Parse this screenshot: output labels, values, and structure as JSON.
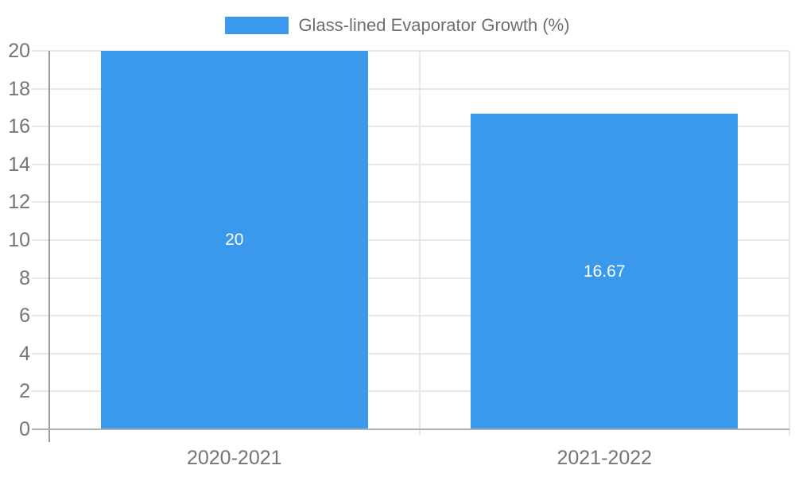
{
  "chart_data": {
    "type": "bar",
    "title": "",
    "legend": "Glass-lined Evaporator Growth (%)",
    "legend_position": "top",
    "categories": [
      "2020-2021",
      "2021-2022"
    ],
    "values": [
      20,
      16.67
    ],
    "data_labels": [
      "20",
      "16.67"
    ],
    "xlabel": "",
    "ylabel": "",
    "ylim": [
      0,
      20
    ],
    "yticks": [
      0,
      2,
      4,
      6,
      8,
      10,
      12,
      14,
      16,
      18,
      20
    ],
    "grid": true,
    "colors": {
      "bar": "#3B99EC",
      "grid_line": "#E7E7E7",
      "zero_line": "#B1B1B1",
      "axis_line": "#9A9A9A",
      "tick_text": "#757575",
      "legend_text": "#6E6E6E",
      "data_label_text": "#FFFFFF",
      "background": "#FFFFFF"
    }
  }
}
